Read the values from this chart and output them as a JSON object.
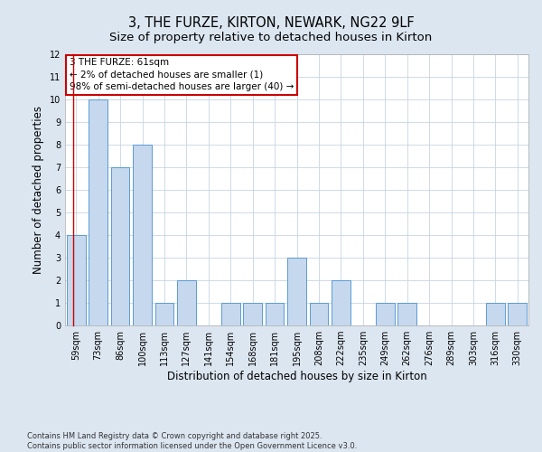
{
  "title_line1": "3, THE FURZE, KIRTON, NEWARK, NG22 9LF",
  "title_line2": "Size of property relative to detached houses in Kirton",
  "xlabel": "Distribution of detached houses by size in Kirton",
  "ylabel": "Number of detached properties",
  "categories": [
    "59sqm",
    "73sqm",
    "86sqm",
    "100sqm",
    "113sqm",
    "127sqm",
    "141sqm",
    "154sqm",
    "168sqm",
    "181sqm",
    "195sqm",
    "208sqm",
    "222sqm",
    "235sqm",
    "249sqm",
    "262sqm",
    "276sqm",
    "289sqm",
    "303sqm",
    "316sqm",
    "330sqm"
  ],
  "values": [
    4,
    10,
    7,
    8,
    1,
    2,
    0,
    1,
    1,
    1,
    3,
    1,
    2,
    0,
    1,
    1,
    0,
    0,
    0,
    1,
    1
  ],
  "bar_color": "#c5d8ed",
  "bar_edge_color": "#5b9bd5",
  "annotation_text": "3 THE FURZE: 61sqm\n← 2% of detached houses are smaller (1)\n98% of semi-detached houses are larger (40) →",
  "annotation_box_color": "#ffffff",
  "annotation_box_edge_color": "#cc0000",
  "ylim": [
    0,
    12
  ],
  "yticks": [
    0,
    1,
    2,
    3,
    4,
    5,
    6,
    7,
    8,
    9,
    10,
    11,
    12
  ],
  "grid_color": "#c8d4e3",
  "background_color": "#dce6f1",
  "plot_background": "#ffffff",
  "footer_text": "Contains HM Land Registry data © Crown copyright and database right 2025.\nContains public sector information licensed under the Open Government Licence v3.0.",
  "title_fontsize": 10.5,
  "subtitle_fontsize": 9.5,
  "axis_label_fontsize": 8.5,
  "tick_fontsize": 7,
  "annotation_fontsize": 7.5,
  "footer_fontsize": 6
}
